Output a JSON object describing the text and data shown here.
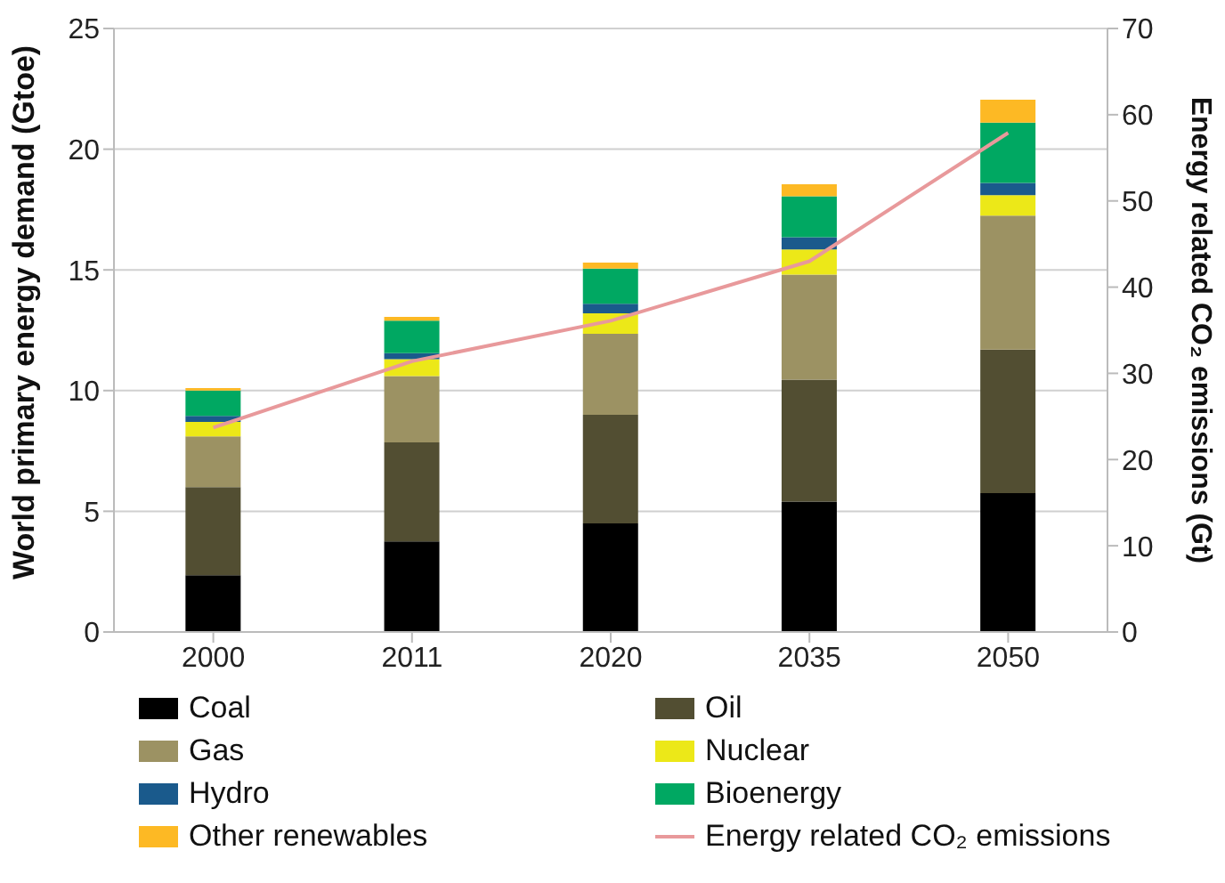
{
  "chart_data": {
    "type": "bar",
    "stacked": true,
    "categories": [
      "2000",
      "2011",
      "2020",
      "2035",
      "2050"
    ],
    "ylabel": "World primary energy demand (Gtoe)",
    "y2label": "Energy related CO₂ emissions (Gt)",
    "ylim": [
      0,
      25
    ],
    "yticks": [
      0,
      5,
      10,
      15,
      20,
      25
    ],
    "y2lim": [
      0,
      70
    ],
    "y2ticks": [
      0,
      10,
      20,
      30,
      40,
      50,
      60,
      70
    ],
    "grid": "y",
    "legend": "bottom",
    "series": [
      {
        "name": "Coal",
        "color": "#000000",
        "values": [
          2.35,
          3.75,
          4.5,
          5.4,
          5.75
        ]
      },
      {
        "name": "Oil",
        "color": "#524e32",
        "values": [
          3.65,
          4.1,
          4.5,
          5.05,
          5.95
        ]
      },
      {
        "name": "Gas",
        "color": "#9c9263",
        "values": [
          2.1,
          2.75,
          3.35,
          4.35,
          5.55
        ]
      },
      {
        "name": "Nuclear",
        "color": "#ece818",
        "values": [
          0.6,
          0.7,
          0.85,
          1.05,
          0.85
        ]
      },
      {
        "name": "Hydro",
        "color": "#1a5a8c",
        "values": [
          0.25,
          0.25,
          0.4,
          0.5,
          0.5
        ]
      },
      {
        "name": "Bioenergy",
        "color": "#00a862",
        "values": [
          1.05,
          1.35,
          1.45,
          1.7,
          2.5
        ]
      },
      {
        "name": "Other renewables",
        "color": "#fdb924",
        "values": [
          0.1,
          0.15,
          0.25,
          0.5,
          0.95
        ]
      },
      {
        "name": "Energy related CO₂ emissions",
        "type": "line",
        "axis": "y2",
        "color": "#e8999b",
        "values": [
          23.7,
          31.4,
          36.1,
          43,
          57.9
        ]
      }
    ]
  }
}
